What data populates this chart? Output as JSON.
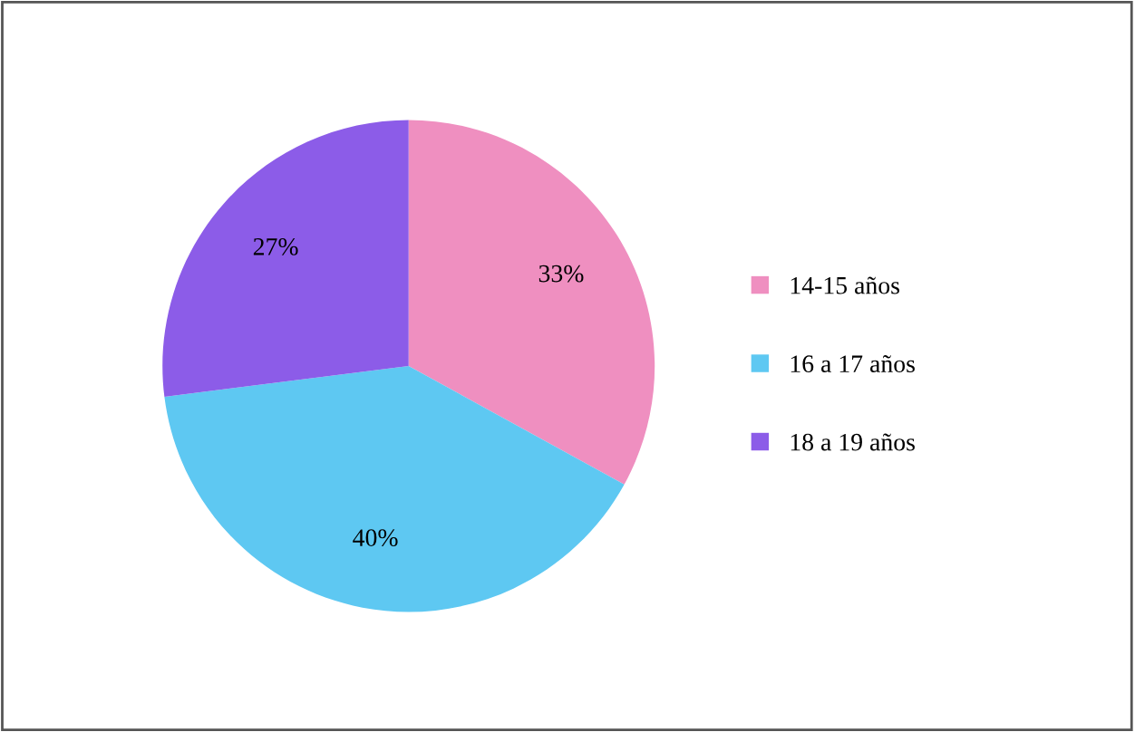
{
  "chart_data": {
    "type": "pie",
    "categories": [
      "14-15 años",
      "16 a 17 años",
      "18 a 19 años"
    ],
    "values": [
      33,
      40,
      27
    ],
    "value_labels": [
      "33%",
      "40%",
      "27%"
    ],
    "colors": [
      "#ef8fc0",
      "#5ec8f2",
      "#8c5ce8"
    ],
    "legend": "right"
  }
}
